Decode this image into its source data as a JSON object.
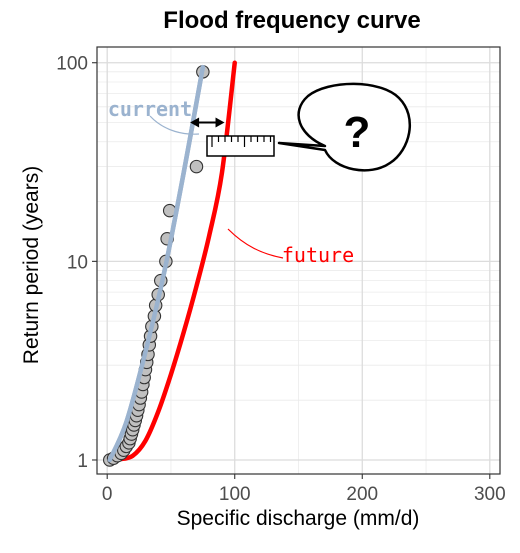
{
  "chart_data": {
    "type": "scatter",
    "title": "Flood frequency curve",
    "xlabel": "Specific discharge (mm/d)",
    "ylabel": "Return period (years)",
    "xlim": [
      -8,
      308
    ],
    "ylim": [
      0.85,
      120
    ],
    "y_scale": "log",
    "x_ticks": [
      0,
      100,
      200,
      300
    ],
    "y_ticks": [
      1,
      10,
      100
    ],
    "x_tick_labels": [
      "0",
      "100",
      "200",
      "300"
    ],
    "y_tick_labels": [
      "1",
      "10",
      "100"
    ],
    "grid": true,
    "colors": {
      "points_fill": "#c0c0c0",
      "points_stroke": "#333333",
      "current": "#9bb3cf",
      "future": "#ff0000",
      "panel_border": "#333333",
      "grid": "#ebebeb"
    },
    "points": [
      [
        2,
        1.0
      ],
      [
        5,
        1.02
      ],
      [
        8,
        1.05
      ],
      [
        11,
        1.08
      ],
      [
        13,
        1.12
      ],
      [
        15,
        1.17
      ],
      [
        17,
        1.22
      ],
      [
        18,
        1.28
      ],
      [
        19,
        1.35
      ],
      [
        20,
        1.42
      ],
      [
        21,
        1.5
      ],
      [
        22,
        1.58
      ],
      [
        23,
        1.67
      ],
      [
        24,
        1.78
      ],
      [
        25,
        1.9
      ],
      [
        26,
        2.05
      ],
      [
        27,
        2.2
      ],
      [
        28,
        2.4
      ],
      [
        29,
        2.6
      ],
      [
        30,
        2.85
      ],
      [
        31,
        3.1
      ],
      [
        32,
        3.4
      ],
      [
        33,
        3.8
      ],
      [
        34,
        4.2
      ],
      [
        35,
        4.7
      ],
      [
        37,
        5.3
      ],
      [
        38,
        6.0
      ],
      [
        40,
        6.8
      ],
      [
        42,
        8.0
      ],
      [
        46,
        10.0
      ],
      [
        47,
        13.0
      ],
      [
        49,
        18.0
      ],
      [
        70,
        30.0
      ],
      [
        75,
        90.0
      ]
    ],
    "series": [
      {
        "name": "current",
        "x": [
          2,
          15,
          30,
          45,
          60,
          75
        ],
        "y": [
          1.0,
          1.55,
          3.5,
          9.0,
          28.0,
          95.0
        ]
      },
      {
        "name": "future",
        "x": [
          0,
          10,
          20,
          30,
          40,
          50,
          60,
          70,
          80,
          90,
          100
        ],
        "y": [
          1.0,
          1.01,
          1.05,
          1.25,
          1.75,
          2.7,
          4.4,
          7.5,
          13.5,
          28.0,
          100.0
        ]
      }
    ],
    "annotations": {
      "current_label": "current",
      "future_label": "future",
      "callout_text": "?",
      "arrow_y": 50,
      "arrow_x": [
        65,
        92
      ]
    }
  }
}
